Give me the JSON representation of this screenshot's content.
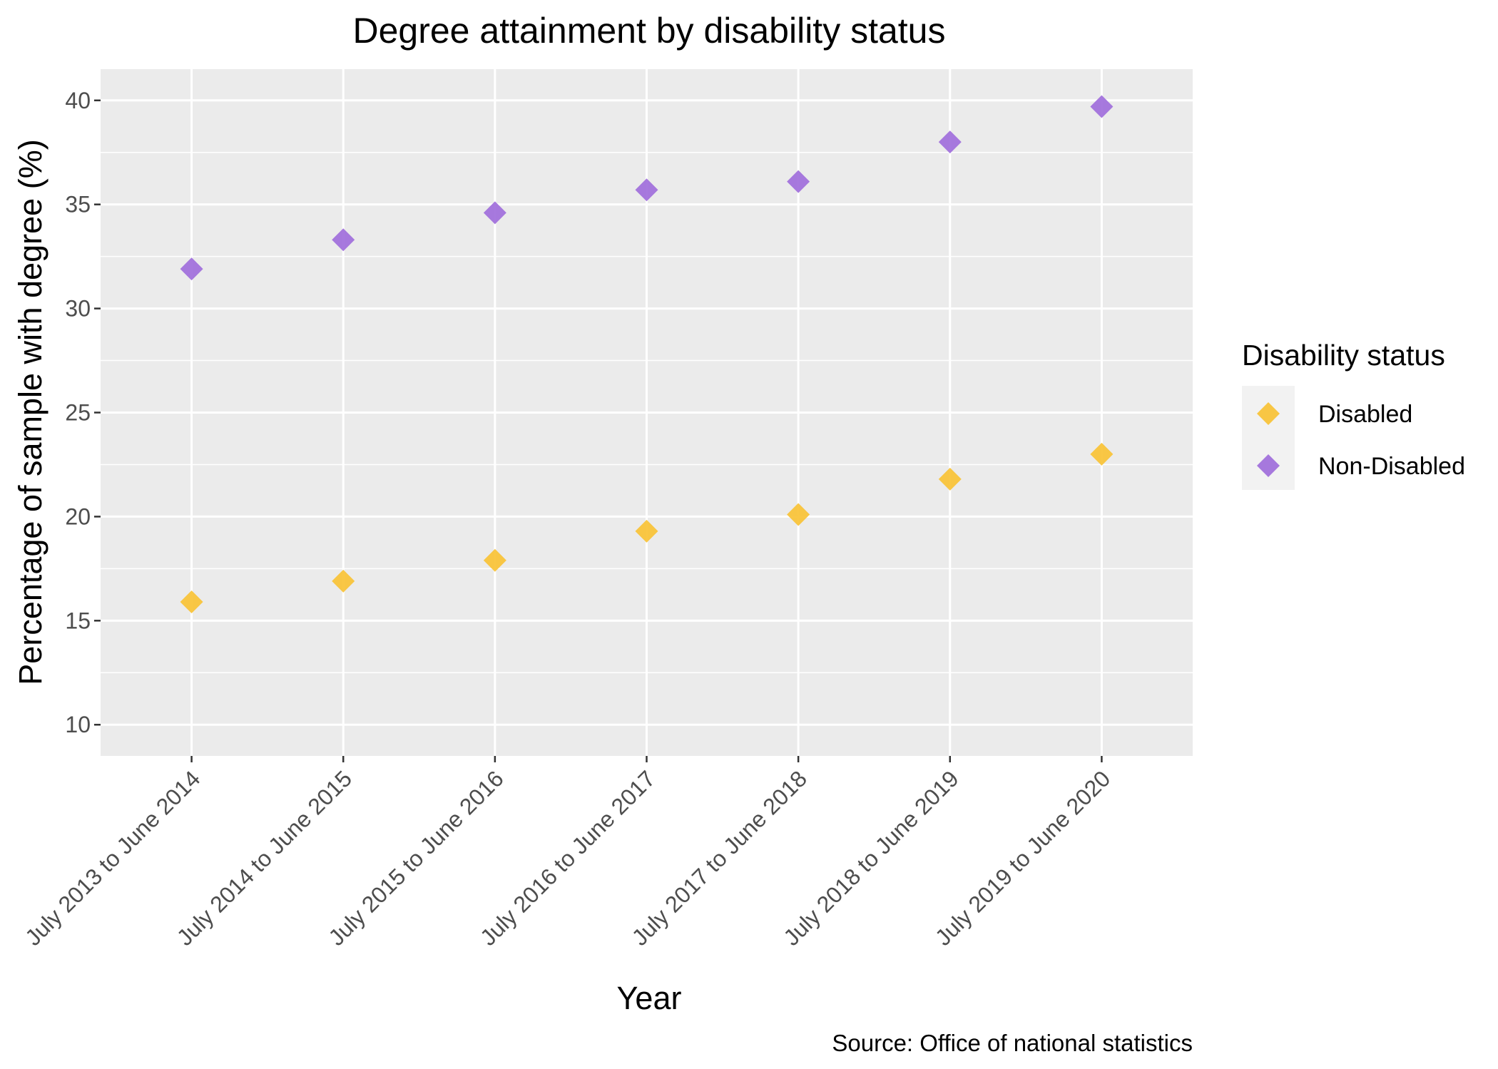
{
  "chart_data": {
    "type": "scatter",
    "title": "Degree attainment by disability status",
    "xlabel": "Year",
    "ylabel": "Percentage of sample with degree (%)",
    "caption": "Source: Office of national statistics",
    "categories": [
      "July 2013 to June 2014",
      "July 2014 to June 2015",
      "July 2015 to June 2016",
      "July 2016 to June 2017",
      "July 2017 to June 2018",
      "July 2018 to June 2019",
      "July 2019 to June 2020"
    ],
    "series": [
      {
        "name": "Disabled",
        "color": "#F8C235",
        "values": [
          15.9,
          16.9,
          17.9,
          19.3,
          20.1,
          21.8,
          23.0
        ]
      },
      {
        "name": "Non-Disabled",
        "color": "#A06EDB",
        "values": [
          31.9,
          33.3,
          34.6,
          35.7,
          36.1,
          38.0,
          39.7
        ]
      }
    ],
    "ylim": [
      8.5,
      41.5
    ],
    "yticks": [
      10,
      15,
      20,
      25,
      30,
      35,
      40
    ],
    "grid": true,
    "legend": {
      "title": "Disability status",
      "position": "right"
    },
    "marker": "diamond"
  }
}
